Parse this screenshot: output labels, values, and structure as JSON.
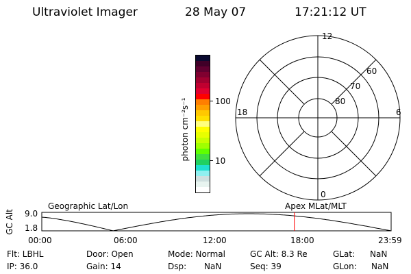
{
  "header": {
    "instrument": "Ultraviolet Imager",
    "date": "28 May 07",
    "time": "17:21:12 UT"
  },
  "colorbar": {
    "label": "photon cm⁻²s⁻¹",
    "ticks": [
      "100",
      "10"
    ],
    "colors": [
      "#0a0a30",
      "#400028",
      "#600030",
      "#800030",
      "#a00030",
      "#c00030",
      "#e00030",
      "#ff0000",
      "#ff7f00",
      "#ffa000",
      "#ffc800",
      "#ffe000",
      "#ffff80",
      "#ffff00",
      "#e8ff00",
      "#c8ff00",
      "#a0ff00",
      "#60ff00",
      "#40e040",
      "#20d060",
      "#20e0d0",
      "#90f0f0",
      "#d0e0e0",
      "#e8f4f0",
      "#ffffff"
    ]
  },
  "polar": {
    "mlt_labels": {
      "top": "12",
      "right": "6",
      "left": "18",
      "bottom": "0"
    },
    "lat_labels": [
      "60",
      "70",
      "80"
    ]
  },
  "orbit_plot": {
    "left_label": "Geographic Lat/Lon",
    "right_label": "Apex MLat/MLT",
    "y_label": "GC Alt",
    "y_ticks": [
      "9.0",
      "1.8"
    ],
    "x_ticks": [
      "00:00",
      "06:00",
      "12:00",
      "18:00",
      "23:59"
    ],
    "current_time_hours": 17.35,
    "marker_color": "#ff0000"
  },
  "status": {
    "flt": "Flt: LBHL",
    "ip": "IP: 36.0",
    "door": "Door: Open",
    "gain": "Gain: 14",
    "mode": "Mode: Normal",
    "dsp_label": "Dsp:",
    "dsp_value": "NaN",
    "gcalt": "GC Alt: 8.3 Re",
    "seq": "Seq: 39",
    "glat_label": "GLat:",
    "glat_value": "NaN",
    "glon_label": "GLon:",
    "glon_value": "NaN"
  }
}
